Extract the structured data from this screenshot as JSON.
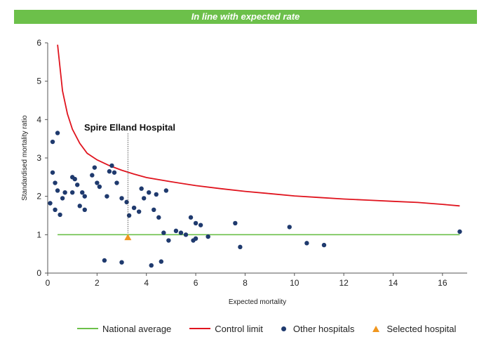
{
  "banner": {
    "text": "In line with expected rate"
  },
  "colors": {
    "banner": "#6cc04a",
    "national_average": "#6cc04a",
    "control_limit": "#e0141e",
    "other_hospitals": "#1f3a6e",
    "selected_hospital": "#f0961e"
  },
  "chart_data": {
    "type": "scatter",
    "xlabel": "Expected mortality",
    "ylabel": "Standardised mortality ratio",
    "xlim": [
      0,
      17
    ],
    "ylim": [
      0,
      6
    ],
    "xticks": [
      0,
      2,
      4,
      6,
      8,
      10,
      12,
      14,
      16
    ],
    "yticks": [
      0,
      1,
      2,
      3,
      4,
      5,
      6
    ],
    "grid": false,
    "legend_position": "bottom",
    "annotation": {
      "text": "Spire Elland Hospital",
      "x": 3.25,
      "y": 0.93
    },
    "series": [
      {
        "name": "National average",
        "kind": "line",
        "x": [
          0.4,
          16.7
        ],
        "y": [
          1,
          1
        ]
      },
      {
        "name": "Control limit",
        "kind": "line",
        "x": [
          0.4,
          0.6,
          0.8,
          1.0,
          1.3,
          1.6,
          2.0,
          2.5,
          3.0,
          3.5,
          4.0,
          5.0,
          6.0,
          7.0,
          8.0,
          9.0,
          10.0,
          11.0,
          12.0,
          13.0,
          14.0,
          15.0,
          16.0,
          16.7
        ],
        "y": [
          5.95,
          4.75,
          4.15,
          3.75,
          3.38,
          3.12,
          2.95,
          2.8,
          2.68,
          2.58,
          2.49,
          2.38,
          2.28,
          2.2,
          2.13,
          2.07,
          2.01,
          1.97,
          1.93,
          1.9,
          1.87,
          1.84,
          1.79,
          1.75
        ]
      },
      {
        "name": "Other hospitals",
        "kind": "points",
        "x": [
          0.2,
          0.4,
          0.2,
          0.3,
          0.4,
          0.1,
          0.3,
          0.5,
          0.6,
          0.7,
          1.0,
          1.1,
          1.2,
          1.4,
          1.5,
          1.0,
          1.3,
          1.5,
          1.8,
          2.0,
          2.1,
          2.4,
          2.6,
          2.8,
          3.0,
          3.2,
          3.5,
          3.8,
          4.1,
          4.3,
          4.5,
          4.7,
          4.9,
          5.2,
          5.4,
          5.6,
          5.8,
          6.0,
          6.2,
          6.5,
          5.9,
          6.0,
          7.6,
          7.8,
          9.8,
          10.5,
          11.2,
          16.7,
          4.2,
          4.6,
          3.3,
          3.7,
          2.3,
          3.0,
          4.4,
          1.9,
          2.7,
          3.9,
          4.8,
          2.5
        ],
        "y": [
          3.42,
          3.65,
          2.62,
          2.35,
          2.15,
          1.82,
          1.65,
          1.52,
          1.95,
          2.1,
          2.5,
          2.45,
          2.3,
          2.1,
          2.0,
          2.1,
          1.75,
          1.65,
          2.55,
          2.35,
          2.25,
          2.0,
          2.8,
          2.35,
          1.95,
          1.85,
          1.7,
          2.2,
          2.1,
          1.65,
          1.45,
          1.05,
          0.85,
          1.1,
          1.05,
          1.0,
          1.45,
          1.3,
          1.25,
          0.95,
          0.85,
          0.9,
          1.3,
          0.68,
          1.2,
          0.78,
          0.73,
          1.08,
          0.2,
          0.3,
          1.5,
          1.6,
          0.33,
          0.28,
          2.05,
          2.75,
          2.62,
          1.95,
          2.15,
          2.65
        ]
      },
      {
        "name": "Selected hospital",
        "kind": "point",
        "x": [
          3.25
        ],
        "y": [
          0.93
        ]
      }
    ]
  },
  "legend": [
    {
      "label": "National average",
      "kind": "line",
      "color_key": "national_average"
    },
    {
      "label": "Control limit",
      "kind": "line",
      "color_key": "control_limit"
    },
    {
      "label": "Other hospitals",
      "kind": "dot",
      "color_key": "other_hospitals"
    },
    {
      "label": "Selected hospital",
      "kind": "triangle",
      "color_key": "selected_hospital"
    }
  ]
}
